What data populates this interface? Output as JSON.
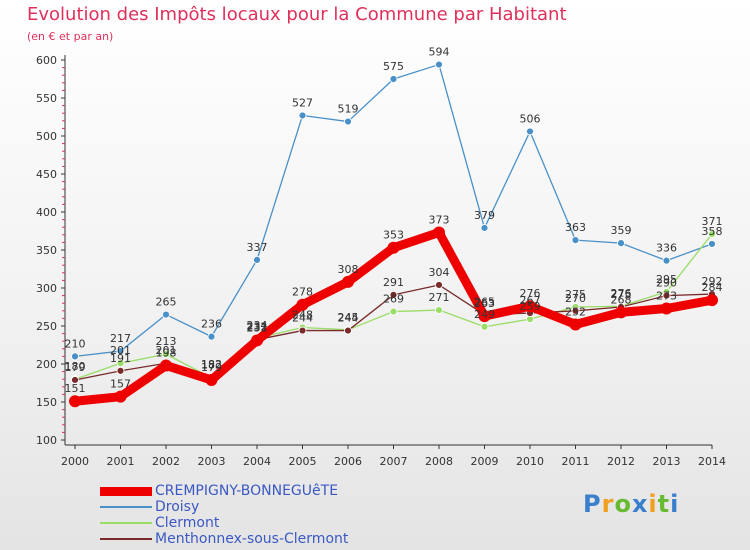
{
  "chart_data": {
    "type": "line",
    "title": "Evolution des Impôts locaux pour la Commune par Habitant",
    "subtitle": "(en € et par an)",
    "xlabel": "",
    "ylabel": "",
    "ylim": [
      100,
      600
    ],
    "yticks": [
      "100",
      "150",
      "200",
      "250",
      "300",
      "350",
      "400",
      "450",
      "500",
      "550",
      "600"
    ],
    "categories": [
      "2000",
      "2001",
      "2002",
      "2003",
      "2004",
      "2005",
      "2006",
      "2007",
      "2008",
      "2009",
      "2010",
      "2011",
      "2012",
      "2013",
      "2014"
    ],
    "grid": false,
    "legend_position": "bottom-left",
    "series": [
      {
        "name": "CREMPIGNY-BONNEGUêTE",
        "color": "#ee0000",
        "values": [
          151,
          157,
          198,
          179,
          231,
          278,
          308,
          353,
          373,
          263,
          276,
          252,
          268,
          273,
          284
        ],
        "labels": [
          "151",
          "157",
          "198",
          "179",
          "231",
          "278",
          "308",
          "353",
          "373",
          "263",
          "276",
          "252",
          "268",
          "273",
          "284"
        ]
      },
      {
        "name": "Droisy",
        "color": "#4a90c8",
        "values": [
          210,
          217,
          265,
          236,
          337,
          527,
          519,
          575,
          594,
          379,
          506,
          363,
          359,
          336,
          358
        ],
        "labels": [
          "210",
          "217",
          "265",
          "236",
          "337",
          "527",
          "519",
          "575",
          "594",
          "379",
          "506",
          "363",
          "359",
          "336",
          "358"
        ]
      },
      {
        "name": "Clermont",
        "color": "#99dd66",
        "values": [
          180,
          201,
          213,
          182,
          234,
          248,
          245,
          269,
          271,
          249,
          259,
          275,
          276,
          295,
          371
        ],
        "labels": [
          "180",
          "201",
          "213",
          "182",
          "234",
          "248",
          "245",
          "269",
          "271",
          "249",
          "259",
          "275",
          "276",
          "295",
          "371"
        ]
      },
      {
        "name": "Menthonnex-sous-Clermont",
        "color": "#7a2a2a",
        "values": [
          179,
          191,
          201,
          183,
          232,
          244,
          244,
          291,
          304,
          265,
          267,
          270,
          275,
          290,
          292
        ],
        "labels": [
          "179",
          "191",
          "201",
          "183",
          "232",
          "244",
          "244",
          "291",
          "304",
          "265",
          "267",
          "270",
          "275",
          "290",
          "292"
        ]
      }
    ]
  },
  "legend": {
    "items": [
      {
        "label": "CREMPIGNY-BONNEGUêTE",
        "color": "#ee0000"
      },
      {
        "label": "Droisy",
        "color": "#4a90c8"
      },
      {
        "label": "Clermont",
        "color": "#99dd66"
      },
      {
        "label": "Menthonnex-sous-Clermont",
        "color": "#7a2a2a"
      }
    ]
  },
  "logo": {
    "letters": [
      "P",
      "r",
      "o",
      "x",
      "i",
      "t",
      "i"
    ],
    "colors": [
      "#3a7fcc",
      "#f0a020",
      "#66bb33",
      "#3a7fcc",
      "#f0a020",
      "#66bb33",
      "#3a7fcc"
    ]
  },
  "colors": {
    "title": "#e0305a",
    "axis": "#333333",
    "tick_text": "#333333"
  }
}
